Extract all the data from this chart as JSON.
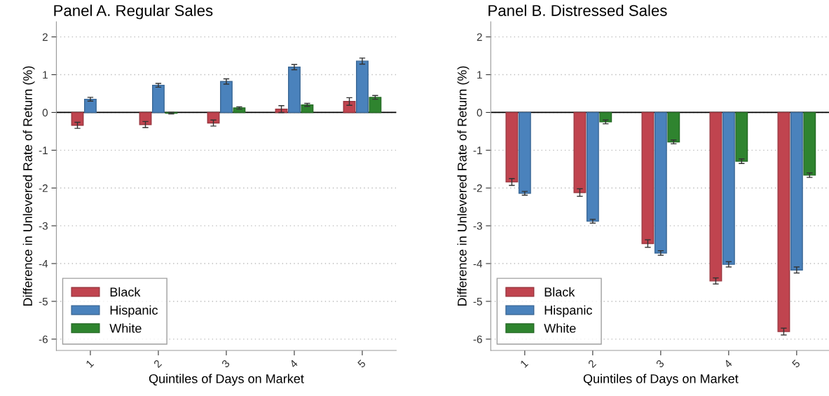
{
  "chart_data": [
    {
      "type": "bar",
      "title": "Panel A. Regular Sales",
      "xlabel": "Quintiles of Days on Market",
      "ylabel": "Difference in Unlevered Rate of Return (%)",
      "categories": [
        "1",
        "2",
        "3",
        "4",
        "5"
      ],
      "series": [
        {
          "name": "Black",
          "color": "#c0444f",
          "values": [
            -0.34,
            -0.32,
            -0.28,
            0.09,
            0.29
          ],
          "errors": [
            0.08,
            0.08,
            0.08,
            0.09,
            0.1
          ]
        },
        {
          "name": "Hispanic",
          "color": "#4a82bc",
          "values": [
            0.35,
            0.72,
            0.82,
            1.2,
            1.36
          ],
          "errors": [
            0.05,
            0.05,
            0.07,
            0.07,
            0.08
          ]
        },
        {
          "name": "White",
          "color": "#2f842f",
          "values": [
            null,
            -0.02,
            0.12,
            0.2,
            0.4
          ],
          "errors": [
            null,
            0.02,
            0.03,
            0.04,
            0.05
          ]
        }
      ],
      "ylim": [
        -6.3,
        2.4
      ],
      "yticks": [
        {
          "value": -6,
          "label": "-6"
        },
        {
          "value": -5,
          "label": "-5"
        },
        {
          "value": -4,
          "label": "-4"
        },
        {
          "value": -3,
          "label": "-3"
        },
        {
          "value": -2,
          "label": "-2"
        },
        {
          "value": -1,
          "label": "-1"
        },
        0,
        1,
        2
      ],
      "grid": "y",
      "legend": "bottom left",
      "ref_lines": [
        {
          "axis": "y",
          "value": 0,
          "color": "#000000",
          "line_style": "solid"
        }
      ]
    },
    {
      "type": "bar",
      "title": "Panel B. Distressed Sales",
      "xlabel": "Quintiles of Days on Market",
      "ylabel": "Difference in Unlevered Rate of Return (%)",
      "categories": [
        "1",
        "2",
        "3",
        "4",
        "5"
      ],
      "series": [
        {
          "name": "Black",
          "color": "#c0444f",
          "values": [
            -1.84,
            -2.12,
            -3.47,
            -4.46,
            -5.8
          ],
          "errors": [
            0.09,
            0.1,
            0.1,
            0.08,
            0.09
          ]
        },
        {
          "name": "Hispanic",
          "color": "#4a82bc",
          "values": [
            -2.14,
            -2.88,
            -3.72,
            -4.02,
            -4.17
          ],
          "errors": [
            0.05,
            0.05,
            0.06,
            0.07,
            0.08
          ]
        },
        {
          "name": "White",
          "color": "#2f842f",
          "values": [
            null,
            -0.25,
            -0.78,
            -1.29,
            -1.66
          ],
          "errors": [
            null,
            0.05,
            0.05,
            0.06,
            0.06
          ]
        }
      ],
      "ylim": [
        -6.3,
        2.4
      ],
      "yticks": [
        {
          "value": -6,
          "label": "-6"
        },
        {
          "value": -5,
          "label": "-5"
        },
        {
          "value": -4,
          "label": "-4"
        },
        {
          "value": -3,
          "label": "-3"
        },
        {
          "value": -2,
          "label": "-2"
        },
        {
          "value": -1,
          "label": "-1"
        },
        0,
        1,
        2
      ],
      "grid": "y",
      "legend": "bottom left",
      "ref_lines": [
        {
          "axis": "y",
          "value": 0,
          "color": "#000000",
          "line_style": "solid"
        }
      ]
    }
  ]
}
